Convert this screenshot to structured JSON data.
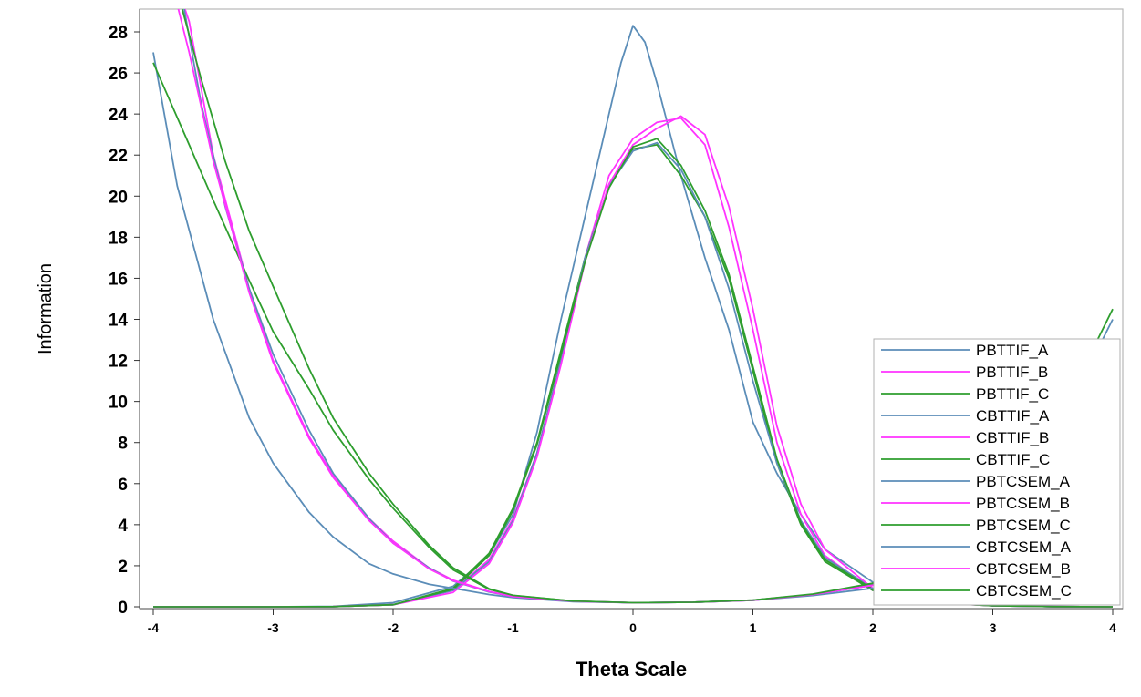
{
  "chart_data": {
    "type": "line",
    "title": "",
    "xlabel": "Theta Scale",
    "ylabel": "Information",
    "xlim": [
      -4,
      4
    ],
    "ylim": [
      0,
      28
    ],
    "xticks": [
      -4,
      -3,
      -2,
      -1,
      0,
      1,
      2,
      3,
      4
    ],
    "yticks": [
      0,
      2,
      4,
      6,
      8,
      10,
      12,
      14,
      16,
      18,
      20,
      22,
      24,
      26,
      28
    ],
    "grid": false,
    "legend_position": "bottom-right",
    "series": [
      {
        "name": "PBTTIF_A",
        "color": "#5b8db8",
        "x": [
          -4,
          -3.5,
          -3,
          -2.5,
          -2,
          -1.5,
          -1.2,
          -1,
          -0.8,
          -0.6,
          -0.4,
          -0.2,
          -0.1,
          0,
          0.1,
          0.2,
          0.4,
          0.6,
          0.8,
          1,
          1.2,
          1.4,
          1.6,
          2,
          2.5,
          3,
          3.5,
          4
        ],
        "y": [
          0,
          0,
          0,
          0.02,
          0.2,
          1,
          2.5,
          4.5,
          8.5,
          14,
          19,
          24,
          26.5,
          28.3,
          27.5,
          25.5,
          21,
          17,
          13.5,
          9,
          6.5,
          4.5,
          2.8,
          1.2,
          0.3,
          0.05,
          0.01,
          0
        ]
      },
      {
        "name": "PBTTIF_B",
        "color": "#ff33ff",
        "x": [
          -4,
          -3.5,
          -3,
          -2.5,
          -2,
          -1.5,
          -1.2,
          -1,
          -0.8,
          -0.6,
          -0.4,
          -0.2,
          0,
          0.2,
          0.4,
          0.6,
          0.8,
          1,
          1.2,
          1.4,
          1.6,
          2,
          2.5,
          3,
          3.5,
          4
        ],
        "y": [
          0,
          0,
          0,
          0.01,
          0.1,
          0.8,
          2.3,
          4.3,
          7.5,
          12,
          17,
          21,
          22.8,
          23.6,
          23.8,
          22.5,
          18.5,
          13.5,
          8,
          4.5,
          2.5,
          0.8,
          0.2,
          0.05,
          0.01,
          0
        ]
      },
      {
        "name": "PBTTIF_C",
        "color": "#2e9e2e",
        "x": [
          -4,
          -3.5,
          -3,
          -2.5,
          -2,
          -1.5,
          -1.2,
          -1,
          -0.8,
          -0.6,
          -0.4,
          -0.2,
          0,
          0.2,
          0.4,
          0.6,
          0.8,
          1,
          1.2,
          1.4,
          1.6,
          2,
          2.5,
          3,
          3.5,
          4
        ],
        "y": [
          0,
          0,
          0,
          0.01,
          0.1,
          0.9,
          2.6,
          4.8,
          8,
          12.5,
          17,
          20.5,
          22.3,
          22.5,
          21,
          19,
          16,
          11.5,
          7,
          4,
          2.2,
          0.8,
          0.2,
          0.05,
          0.01,
          0
        ]
      },
      {
        "name": "CBTTIF_A",
        "color": "#5b8db8",
        "x": [
          -4,
          -3.5,
          -3,
          -2.5,
          -2,
          -1.5,
          -1.2,
          -1,
          -0.8,
          -0.6,
          -0.4,
          -0.2,
          0,
          0.2,
          0.4,
          0.6,
          0.8,
          1,
          1.2,
          1.4,
          1.6,
          2,
          2.5,
          3,
          3.5,
          4
        ],
        "y": [
          0,
          0,
          0,
          0.01,
          0.1,
          0.8,
          2.2,
          4.2,
          7.5,
          12,
          17,
          20.5,
          22.2,
          22.6,
          21.3,
          19,
          15.5,
          11,
          7,
          4.2,
          2.4,
          0.9,
          0.25,
          0.05,
          0.01,
          0
        ]
      },
      {
        "name": "CBTTIF_B",
        "color": "#ff33ff",
        "x": [
          -4,
          -3.5,
          -3,
          -2.5,
          -2,
          -1.5,
          -1.2,
          -1,
          -0.8,
          -0.6,
          -0.4,
          -0.2,
          0,
          0.2,
          0.4,
          0.6,
          0.8,
          1,
          1.2,
          1.4,
          1.6,
          2,
          2.5,
          3,
          3.5,
          4
        ],
        "y": [
          0,
          0,
          0,
          0.01,
          0.1,
          0.7,
          2.1,
          4.1,
          7.3,
          11.8,
          16.8,
          20.6,
          22.5,
          23.3,
          23.9,
          23,
          19.5,
          14.5,
          8.8,
          5,
          2.8,
          0.9,
          0.25,
          0.05,
          0.01,
          0
        ]
      },
      {
        "name": "CBTTIF_C",
        "color": "#2e9e2e",
        "x": [
          -4,
          -3.5,
          -3,
          -2.5,
          -2,
          -1.5,
          -1.2,
          -1,
          -0.8,
          -0.6,
          -0.4,
          -0.2,
          0,
          0.2,
          0.4,
          0.6,
          0.8,
          1,
          1.2,
          1.4,
          1.6,
          2,
          2.5,
          3,
          3.5,
          4
        ],
        "y": [
          0,
          0,
          0,
          0.01,
          0.1,
          0.85,
          2.5,
          4.7,
          7.9,
          12.3,
          16.8,
          20.4,
          22.4,
          22.8,
          21.5,
          19.3,
          16.2,
          11.7,
          7.2,
          4.1,
          2.3,
          0.85,
          0.22,
          0.05,
          0.01,
          0
        ]
      },
      {
        "name": "PBTCSEM_A",
        "color": "#5b8db8",
        "x": [
          -4,
          -3.8,
          -3.5,
          -3.2,
          -3,
          -2.7,
          -2.5,
          -2.2,
          -2,
          -1.7,
          -1.5,
          -1.2,
          -1,
          -0.5,
          0,
          0.5,
          1,
          1.5,
          2,
          2.5,
          3,
          3.5,
          4
        ],
        "y": [
          27,
          20.5,
          14,
          9.2,
          7,
          4.6,
          3.4,
          2.1,
          1.6,
          1.1,
          0.9,
          0.6,
          0.45,
          0.25,
          0.2,
          0.22,
          0.32,
          0.55,
          0.9,
          1.8,
          3.2,
          6.5,
          11.7
        ]
      },
      {
        "name": "PBTCSEM_B",
        "color": "#ff33ff",
        "x": [
          -3.9,
          -3.7,
          -3.5,
          -3.2,
          -3,
          -2.7,
          -2.5,
          -2.2,
          -2,
          -1.7,
          -1.5,
          -1.2,
          -1,
          -0.5,
          0,
          0.5,
          1,
          1.5,
          2,
          2.5,
          3,
          3.5,
          4
        ],
        "y": [
          32,
          28.5,
          22,
          15.5,
          12,
          8.3,
          6.4,
          4.3,
          3.2,
          1.9,
          1.3,
          0.75,
          0.5,
          0.27,
          0.2,
          0.22,
          0.32,
          0.6,
          1.05,
          2,
          3.8,
          7.5,
          12.8
        ]
      },
      {
        "name": "PBTCSEM_C",
        "color": "#2e9e2e",
        "x": [
          -4,
          -3.7,
          -3.5,
          -3.2,
          -3,
          -2.7,
          -2.5,
          -2.2,
          -2,
          -1.7,
          -1.5,
          -1.2,
          -1,
          -0.5,
          0,
          0.5,
          1,
          1.5,
          2,
          2.5,
          3,
          3.5,
          4
        ],
        "y": [
          26.5,
          22.5,
          19.8,
          15.9,
          13.4,
          10.6,
          8.6,
          6.2,
          4.8,
          2.9,
          1.8,
          0.85,
          0.55,
          0.28,
          0.2,
          0.22,
          0.33,
          0.6,
          1.1,
          2.1,
          3.9,
          7.7,
          13
        ]
      },
      {
        "name": "CBTCSEM_A",
        "color": "#5b8db8",
        "x": [
          -3.8,
          -3.6,
          -3.4,
          -3.2,
          -3,
          -2.7,
          -2.5,
          -2.2,
          -2,
          -1.7,
          -1.5,
          -1.2,
          -1,
          -0.5,
          0,
          0.5,
          1,
          1.5,
          2,
          2.5,
          3,
          3.5,
          4
        ],
        "y": [
          31,
          24.5,
          19.5,
          15.5,
          12.3,
          8.6,
          6.5,
          4.3,
          3.1,
          1.9,
          1.25,
          0.72,
          0.5,
          0.26,
          0.2,
          0.22,
          0.32,
          0.6,
          1.05,
          2.2,
          4.2,
          8.2,
          14
        ]
      },
      {
        "name": "CBTCSEM_B",
        "color": "#ff33ff",
        "x": [
          -3.85,
          -3.7,
          -3.5,
          -3.2,
          -3,
          -2.7,
          -2.5,
          -2.2,
          -2,
          -1.7,
          -1.5,
          -1.2,
          -1,
          -0.5,
          0,
          0.5,
          1,
          1.5,
          2,
          2.5,
          3,
          3.5,
          4
        ],
        "y": [
          30.5,
          27,
          21.7,
          15.3,
          11.9,
          8.2,
          6.3,
          4.2,
          3.1,
          1.85,
          1.27,
          0.74,
          0.5,
          0.27,
          0.2,
          0.22,
          0.32,
          0.6,
          1.05,
          2.05,
          3.85,
          7.6,
          12.9
        ]
      },
      {
        "name": "CBTCSEM_C",
        "color": "#2e9e2e",
        "x": [
          -3.8,
          -3.6,
          -3.4,
          -3.2,
          -3,
          -2.7,
          -2.5,
          -2.2,
          -2,
          -1.7,
          -1.5,
          -1.2,
          -1,
          -0.5,
          0,
          0.5,
          1,
          1.5,
          2,
          2.5,
          3,
          3.5,
          4
        ],
        "y": [
          30,
          25.7,
          21.7,
          18.3,
          15.6,
          11.6,
          9.2,
          6.5,
          5,
          3,
          1.9,
          0.88,
          0.56,
          0.28,
          0.2,
          0.22,
          0.33,
          0.62,
          1.15,
          2.3,
          4.4,
          8.6,
          14.5
        ]
      }
    ]
  }
}
